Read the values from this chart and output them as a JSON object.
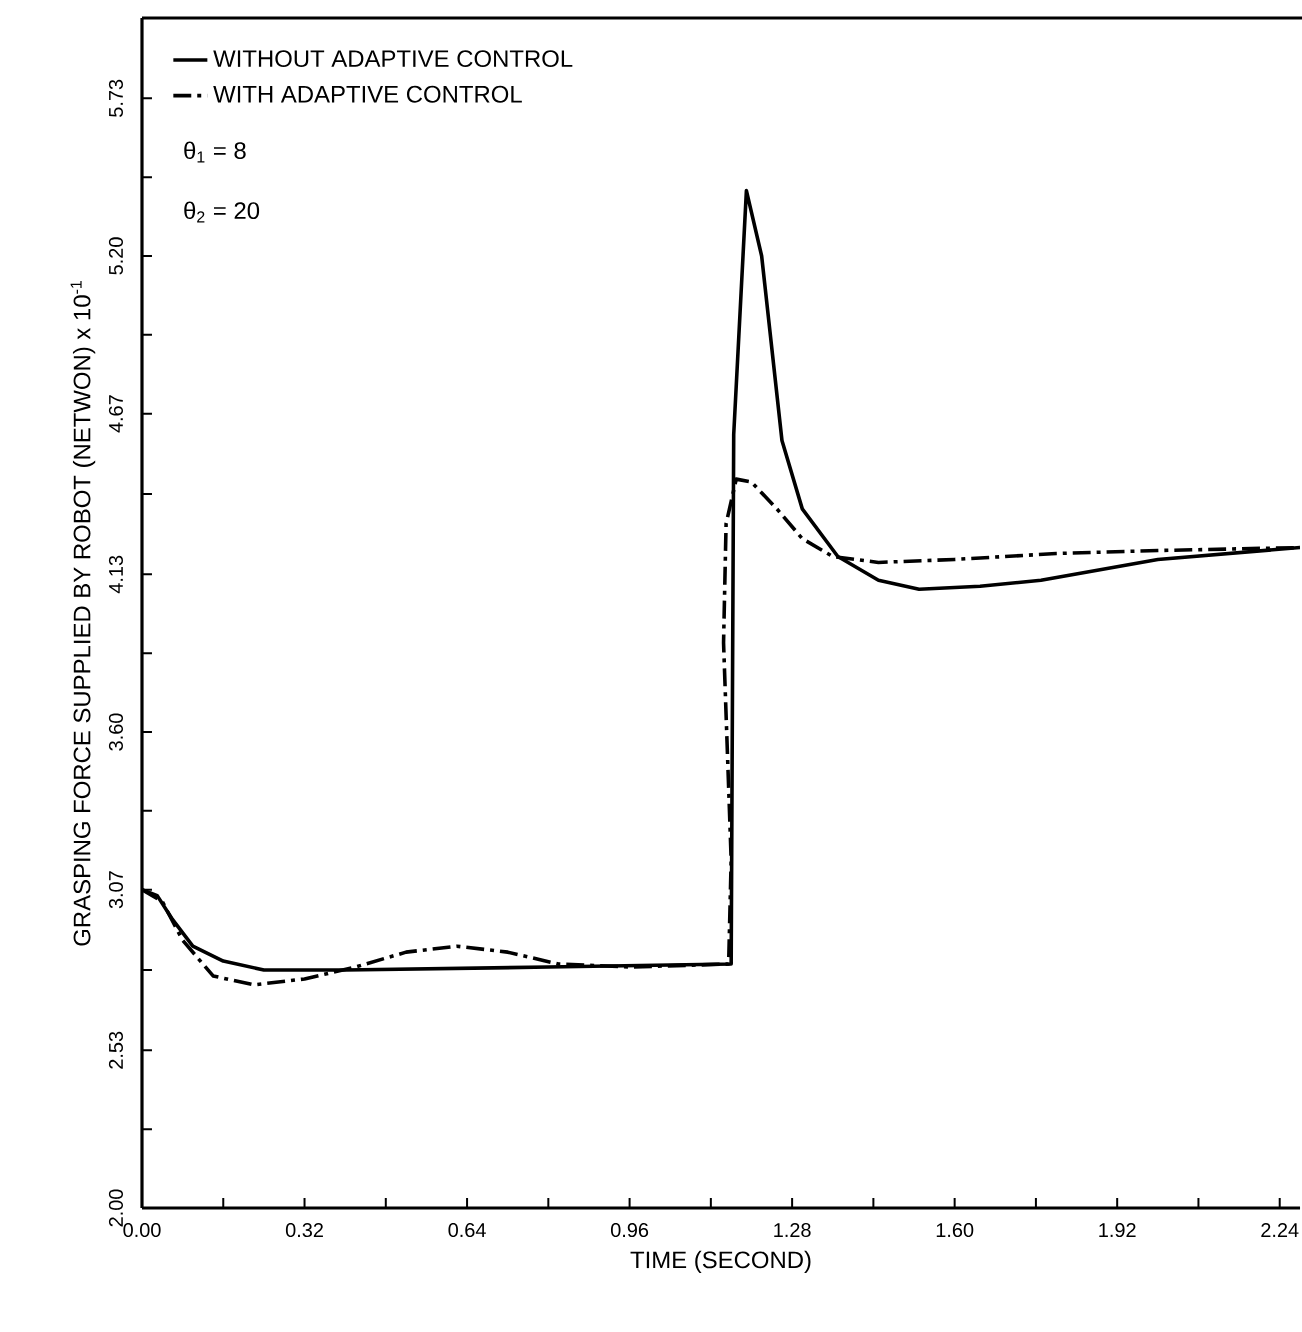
{
  "chart_data": {
    "type": "line",
    "xlabel": "TIME (SECOND)",
    "ylabel": "GRASPING FORCE SUPPLIED BY ROBOT (NETWON) x 10$^{-1}$",
    "annotations": [
      "θ$_{1}$ = 8",
      "θ$_{2}$ = 20"
    ],
    "xlim": [
      0,
      2.28
    ],
    "ylim": [
      2.0,
      6.0
    ],
    "xticks": [
      {
        "value": 0,
        "label": "0.00"
      },
      {
        "value": 0.16,
        "label": null
      },
      {
        "value": 0.32,
        "label": "0.32"
      },
      {
        "value": 0.48,
        "label": null
      },
      {
        "value": 0.64,
        "label": "0.64"
      },
      {
        "value": 0.8,
        "label": null
      },
      {
        "value": 0.96,
        "label": "0.96"
      },
      {
        "value": 1.12,
        "label": null
      },
      {
        "value": 1.28,
        "label": "1.28"
      },
      {
        "value": 1.44,
        "label": null
      },
      {
        "value": 1.6,
        "label": "1.60"
      },
      {
        "value": 1.76,
        "label": null
      },
      {
        "value": 1.92,
        "label": "1.92"
      },
      {
        "value": 2.08,
        "label": null
      },
      {
        "value": 2.24,
        "label": "2.24"
      }
    ],
    "yticks": [
      {
        "value": 2,
        "label": "2.00"
      },
      {
        "value": 2.265,
        "label": null
      },
      {
        "value": 2.53,
        "label": "2.53"
      },
      {
        "value": 2.8,
        "label": null
      },
      {
        "value": 3.07,
        "label": "3.07"
      },
      {
        "value": 3.335,
        "label": null
      },
      {
        "value": 3.6,
        "label": "3.60"
      },
      {
        "value": 3.865,
        "label": null
      },
      {
        "value": 4.13,
        "label": "4.13"
      },
      {
        "value": 4.4,
        "label": null
      },
      {
        "value": 4.67,
        "label": "4.67"
      },
      {
        "value": 4.935,
        "label": null
      },
      {
        "value": 5.2,
        "label": "5.20"
      },
      {
        "value": 5.465,
        "label": null
      },
      {
        "value": 5.73,
        "label": "5.73"
      }
    ],
    "legend": "top left",
    "grid": false,
    "series": [
      {
        "name": "WITHOUT ADAPTIVE CONTROL",
        "color": "#000000",
        "line_style": "solid",
        "x": [
          0,
          0.03,
          0.06,
          0.1,
          0.16,
          0.24,
          0.4,
          0.8,
          1.16,
          1.165,
          1.19,
          1.22,
          1.26,
          1.3,
          1.37,
          1.45,
          1.53,
          1.65,
          1.77,
          2.0,
          2.28
        ],
        "values": [
          3.07,
          3.05,
          2.97,
          2.88,
          2.83,
          2.8,
          2.8,
          2.81,
          2.82,
          4.6,
          5.42,
          5.2,
          4.58,
          4.35,
          4.19,
          4.11,
          4.08,
          4.09,
          4.11,
          4.18,
          4.22
        ]
      },
      {
        "name": "WITH ADAPTIVE CONTROL",
        "color": "#000000",
        "line_style": "dashdot",
        "x": [
          0,
          0.04,
          0.08,
          0.14,
          0.22,
          0.32,
          0.42,
          0.52,
          0.62,
          0.72,
          0.82,
          0.96,
          1.155,
          1.16,
          1.145,
          1.15,
          1.17,
          1.2,
          1.25,
          1.3,
          1.36,
          1.45,
          1.6,
          1.8,
          2.0,
          2.28
        ],
        "values": [
          3.07,
          3.03,
          2.9,
          2.78,
          2.75,
          2.77,
          2.81,
          2.86,
          2.88,
          2.86,
          2.82,
          2.81,
          2.82,
          3.17,
          3.9,
          4.3,
          4.45,
          4.44,
          4.35,
          4.25,
          4.19,
          4.17,
          4.18,
          4.2,
          4.21,
          4.22
        ]
      }
    ]
  }
}
